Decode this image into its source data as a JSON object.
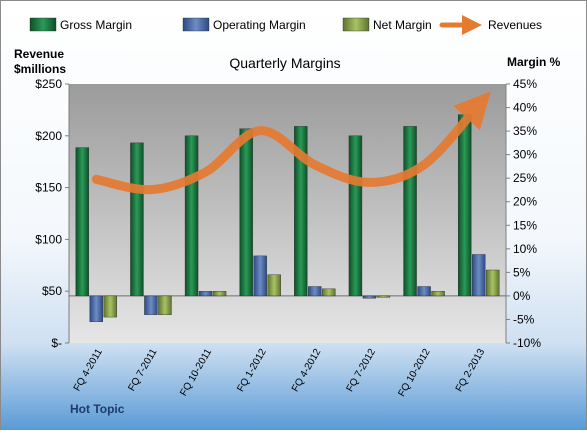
{
  "chart_data": {
    "type": "bar",
    "title": "Quarterly Margins",
    "footer_label": "Hot Topic",
    "left_axis": {
      "label_line1": "Revenue",
      "label_line2": "$millions",
      "ticks": [
        {
          "v": 0,
          "label": "$-"
        },
        {
          "v": 50,
          "label": "$50"
        },
        {
          "v": 100,
          "label": "$100"
        },
        {
          "v": 150,
          "label": "$150"
        },
        {
          "v": 200,
          "label": "$200"
        },
        {
          "v": 250,
          "label": "$250"
        }
      ],
      "range": [
        0,
        250
      ]
    },
    "right_axis": {
      "label": "Margin %",
      "ticks": [
        {
          "v": -10,
          "label": "-10%"
        },
        {
          "v": -5,
          "label": "-5%"
        },
        {
          "v": 0,
          "label": "0%"
        },
        {
          "v": 5,
          "label": "5%"
        },
        {
          "v": 10,
          "label": "10%"
        },
        {
          "v": 15,
          "label": "15%"
        },
        {
          "v": 20,
          "label": "20%"
        },
        {
          "v": 25,
          "label": "25%"
        },
        {
          "v": 30,
          "label": "30%"
        },
        {
          "v": 35,
          "label": "35%"
        },
        {
          "v": 40,
          "label": "40%"
        },
        {
          "v": 45,
          "label": "45%"
        }
      ],
      "range": [
        -10,
        45
      ]
    },
    "categories": [
      "FQ 4-2011",
      "FQ 7-2011",
      "FQ 10-2011",
      "FQ 1-2012",
      "FQ 4-2012",
      "FQ 7-2012",
      "FQ 10-2012",
      "FQ 2-2013"
    ],
    "series": [
      {
        "name": "Gross Margin",
        "axis": "right",
        "color": "#1E7B45",
        "values": [
          31.5,
          32.5,
          34,
          35.5,
          36,
          34,
          36,
          38.5
        ]
      },
      {
        "name": "Operating Margin",
        "axis": "right",
        "color": "#4F6FA8",
        "values": [
          -5.5,
          -4,
          1,
          8.5,
          2,
          -0.5,
          2,
          8.8
        ]
      },
      {
        "name": "Net Margin",
        "axis": "right",
        "color": "#8EA84A",
        "values": [
          -4.5,
          -4,
          1,
          4.5,
          1.5,
          -0.3,
          1,
          5.5
        ]
      },
      {
        "name": "Revenues",
        "axis": "left",
        "color": "#E57A31",
        "type": "line",
        "values": [
          158,
          148,
          165,
          205,
          172,
          155,
          172,
          230
        ]
      }
    ],
    "legend_position": "top",
    "grid": false,
    "colors": {
      "background_top": "#FFFFFF",
      "background_bottom": "#5B9BD5",
      "plot_top": "#9B9B9B",
      "plot_bottom": "#E4E4E4"
    }
  }
}
